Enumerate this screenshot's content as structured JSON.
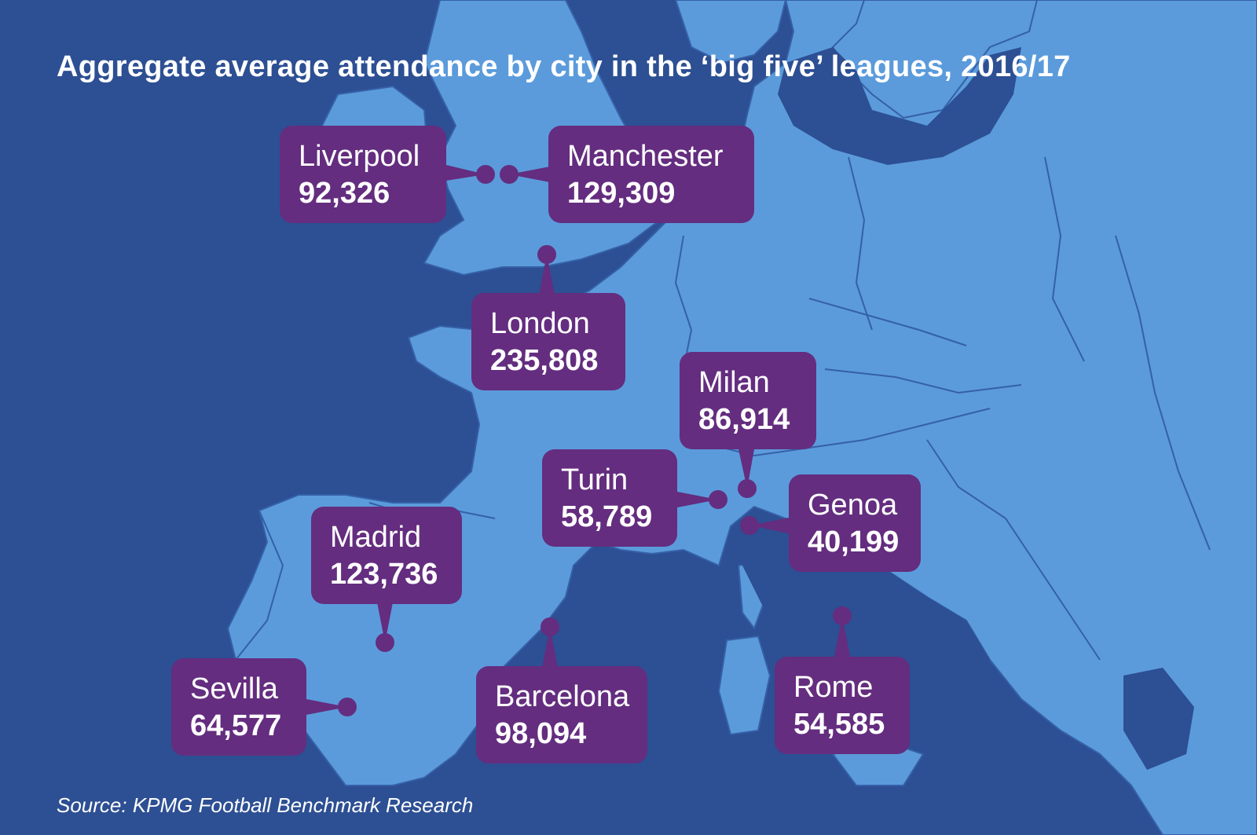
{
  "title": "Aggregate average attendance by city in the ‘big five’ leagues, 2016/17",
  "source": "Source: KPMG Football Benchmark Research",
  "colors": {
    "sea": "#2d4f93",
    "land": "#5b9bdb",
    "border": "#3560a8",
    "callout": "#642d7f",
    "text": "#ffffff"
  },
  "cities": {
    "liverpool": {
      "name": "Liverpool",
      "attendance": "92,326"
    },
    "manchester": {
      "name": "Manchester",
      "attendance": "129,309"
    },
    "london": {
      "name": "London",
      "attendance": "235,808"
    },
    "milan": {
      "name": "Milan",
      "attendance": "86,914"
    },
    "turin": {
      "name": "Turin",
      "attendance": "58,789"
    },
    "genoa": {
      "name": "Genoa",
      "attendance": "40,199"
    },
    "madrid": {
      "name": "Madrid",
      "attendance": "123,736"
    },
    "sevilla": {
      "name": "Sevilla",
      "attendance": "64,577"
    },
    "barcelona": {
      "name": "Barcelona",
      "attendance": "98,094"
    },
    "rome": {
      "name": "Rome",
      "attendance": "54,585"
    }
  }
}
